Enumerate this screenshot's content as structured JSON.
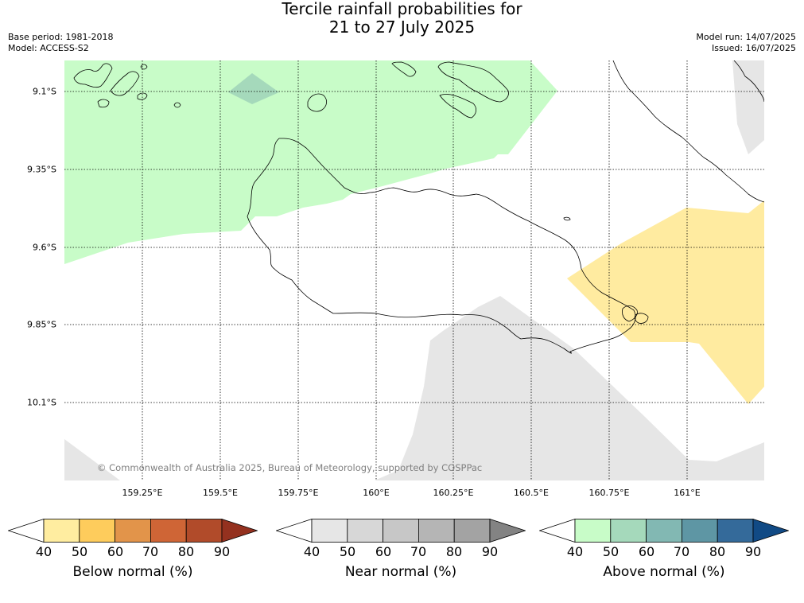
{
  "title": {
    "line1": "Tercile rainfall probabilities for",
    "line2": "21 to 27 July 2025"
  },
  "meta_left": {
    "base_period": "Base period: 1981-2018",
    "model": "Model: ACCESS-S2"
  },
  "meta_right": {
    "model_run": "Model run: 14/07/2025",
    "issued": "Issued: 16/07/2025"
  },
  "map": {
    "latitude_labels": [
      "9.1°S",
      "9.35°S",
      "9.6°S",
      "9.85°S",
      "10.1°S"
    ],
    "longitude_labels": [
      "159.25°E",
      "159.5°E",
      "159.75°E",
      "160°E",
      "160.25°E",
      "160.5°E",
      "160.75°E",
      "161°E"
    ],
    "copyright": "© Commonwealth of Australia 2025, Bureau of Meteorology, supported by COSPPac",
    "region_colors": {
      "above_normal_50": "#c8fcc8",
      "above_normal_60": "#a5d9bb",
      "below_normal_50": "#ffeba0",
      "near_normal_50": "#e6e6e6",
      "coastline": "#000000",
      "gridline": "#000000"
    }
  },
  "colorbars": [
    {
      "title": "Below normal (%)",
      "ticks": [
        "40",
        "50",
        "60",
        "70",
        "80",
        "90"
      ],
      "colors": [
        "#ffffff",
        "#ffeda0",
        "#fecc5c",
        "#e2944a",
        "#cf6536",
        "#b14b2a",
        "#94311f"
      ]
    },
    {
      "title": "Near normal (%)",
      "ticks": [
        "40",
        "50",
        "60",
        "70",
        "80",
        "90"
      ],
      "colors": [
        "#ffffff",
        "#e6e6e6",
        "#d7d7d7",
        "#c7c7c7",
        "#b5b5b5",
        "#a3a3a3",
        "#838383"
      ]
    },
    {
      "title": "Above normal (%)",
      "ticks": [
        "40",
        "50",
        "60",
        "70",
        "80",
        "90"
      ],
      "colors": [
        "#ffffff",
        "#c8fcc8",
        "#a5d9bb",
        "#82b8b3",
        "#5e96a4",
        "#346a9a",
        "#114a85"
      ]
    }
  ]
}
